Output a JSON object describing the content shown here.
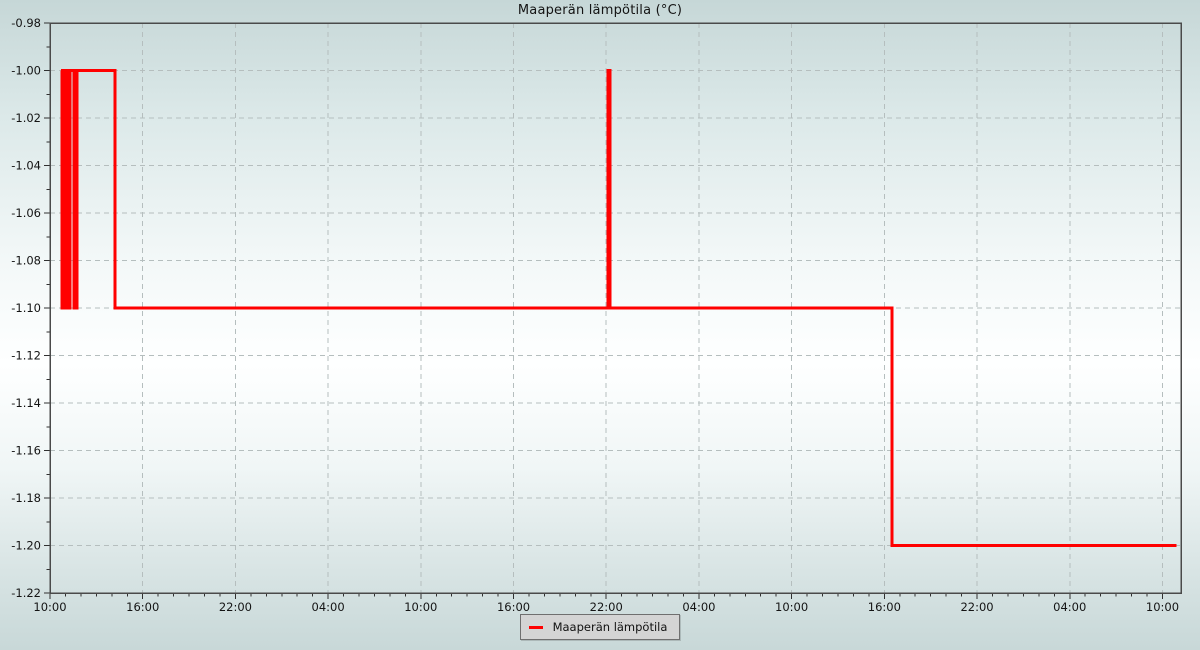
{
  "page": {
    "title": "Maaperän lämpötila (°C)"
  },
  "legend": {
    "label": "Maaperän lämpötila",
    "swatch_color": "#ff0000"
  },
  "colors": {
    "line": "#ff0000",
    "grid": "#b5bebe",
    "plot_border": "#4a4a4a",
    "tick": "#303030",
    "label_text": "#141414",
    "legend_bg": "#d4d4d4",
    "legend_border": "#6f6f6f"
  },
  "chart_data": {
    "type": "line",
    "title": "Maaperän lämpötila (°C)",
    "step_mode": "hv",
    "line_width": 3,
    "grid": {
      "show": true,
      "dash": "5 4"
    },
    "legend_position": "bottom-center",
    "x_axis": {
      "label": "",
      "unit": "time-of-day",
      "range_hours": [
        0,
        73.2
      ],
      "major_tick_every_hours": 6,
      "minor_tick_every_hours": 1,
      "tick_labels": [
        "10:00",
        "16:00",
        "22:00",
        "04:00",
        "10:00",
        "16:00",
        "22:00",
        "04:00",
        "10:00",
        "16:00",
        "22:00",
        "04:00",
        "10:00"
      ]
    },
    "y_axis": {
      "label": "",
      "range": [
        -1.22,
        -0.98
      ],
      "major_tick_step": 0.02,
      "minor_tick_step": 0.01,
      "tick_labels": [
        "-0.98",
        "-1.00",
        "-1.02",
        "-1.04",
        "-1.06",
        "-1.08",
        "-1.10",
        "-1.12",
        "-1.14",
        "-1.16",
        "-1.18",
        "-1.20",
        "-1.22"
      ]
    },
    "series": [
      {
        "name": "Maaperän lämpötila",
        "color": "#ff0000",
        "points_hours_value": [
          [
            0.74,
            -1.0
          ],
          [
            0.78,
            -1.1
          ],
          [
            0.82,
            -1.0
          ],
          [
            0.86,
            -1.1
          ],
          [
            0.9,
            -1.0
          ],
          [
            0.94,
            -1.1
          ],
          [
            0.98,
            -1.0
          ],
          [
            1.02,
            -1.1
          ],
          [
            1.06,
            -1.0
          ],
          [
            1.1,
            -1.1
          ],
          [
            1.14,
            -1.0
          ],
          [
            1.18,
            -1.1
          ],
          [
            1.22,
            -1.0
          ],
          [
            1.26,
            -1.1
          ],
          [
            1.3,
            -1.0
          ],
          [
            1.55,
            -1.1
          ],
          [
            1.74,
            -1.0
          ],
          [
            4.2,
            -1.1
          ],
          [
            36.1,
            -1.0
          ],
          [
            36.25,
            -1.1
          ],
          [
            54.5,
            -1.2
          ],
          [
            72.9,
            -1.2
          ]
        ]
      }
    ]
  }
}
